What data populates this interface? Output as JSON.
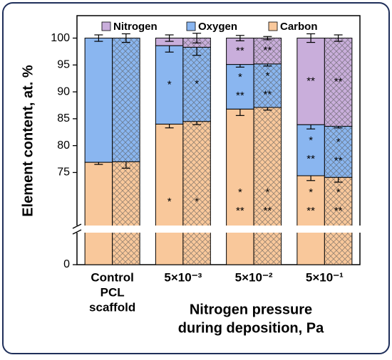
{
  "chart_data": {
    "type": "stacked-bar",
    "ylabel": "Element content, at. %",
    "xlabel": [
      "Nitrogen pressure",
      "during deposition, Pa"
    ],
    "groups": [
      [
        "Control",
        "PCL",
        "scaffold"
      ],
      [
        "5×10⁻³"
      ],
      [
        "5×10⁻²"
      ],
      [
        "5×10⁻¹"
      ]
    ],
    "bars_per_group": 2,
    "bar_styles": [
      "solid",
      "crosshatch"
    ],
    "ylim": [
      0,
      101
    ],
    "axis_break": [
      6,
      65
    ],
    "yticks": [
      0,
      75,
      80,
      85,
      90,
      95,
      100
    ],
    "legend": "top",
    "series": [
      {
        "name": "Carbon",
        "color": "#f9c89b",
        "values": [
          76.9,
          77.0,
          84.0,
          84.5,
          86.8,
          87.1,
          74.4,
          74.1
        ],
        "errors": [
          0.4,
          1.2,
          0.7,
          0.6,
          1.2,
          0.5,
          0.9,
          0.9
        ],
        "marks": [
          null,
          null,
          [
            "*"
          ],
          [
            "*"
          ],
          [
            "*",
            "**"
          ],
          [
            "*",
            "**"
          ],
          [
            "*",
            "**"
          ],
          [
            "*",
            "**"
          ]
        ]
      },
      {
        "name": "Oxygen",
        "color": "#8ab6f0",
        "values": [
          23.1,
          23.0,
          14.6,
          13.8,
          8.3,
          8.1,
          9.5,
          9.5
        ],
        "errors": [
          0.6,
          0.8,
          1.2,
          1.5,
          0.5,
          0.4,
          0.8,
          0.3
        ],
        "marks": [
          null,
          null,
          [
            "*"
          ],
          [
            "*"
          ],
          [
            "*",
            "**"
          ],
          [
            "*",
            "**"
          ],
          [
            "*",
            "**"
          ],
          [
            "*",
            "**"
          ]
        ]
      },
      {
        "name": "Nitrogen",
        "color": "#c9aedb",
        "values": [
          0,
          0,
          1.4,
          1.7,
          4.9,
          4.8,
          16.1,
          16.4
        ],
        "errors": [
          null,
          null,
          0.6,
          0.9,
          0.5,
          0.3,
          0.8,
          0.6
        ],
        "marks": [
          null,
          null,
          null,
          null,
          [
            "**"
          ],
          [
            "**"
          ],
          [
            "**"
          ],
          [
            "**"
          ]
        ]
      }
    ]
  }
}
